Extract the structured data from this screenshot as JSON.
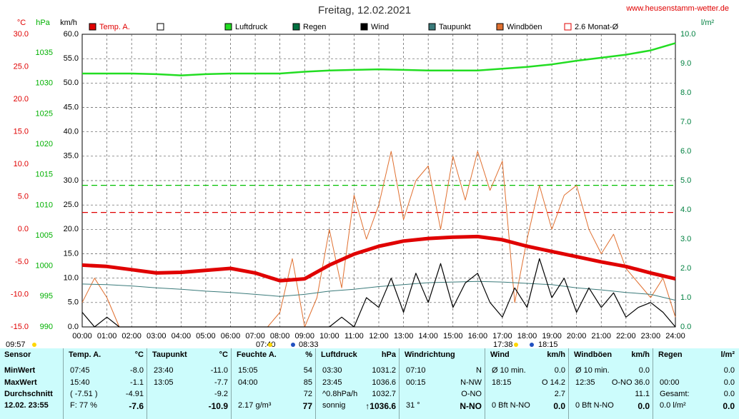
{
  "chart_data": {
    "type": "line",
    "title": "Freitag, 12.02.2021",
    "site": "www.heusenstamm-wetter.de",
    "xlim": [
      0,
      24
    ],
    "xticks": [
      {
        "value": 0,
        "label": "00:00"
      },
      {
        "value": 1,
        "label": "01:00"
      },
      {
        "value": 2,
        "label": "02:00"
      },
      {
        "value": 3,
        "label": "03:00"
      },
      {
        "value": 4,
        "label": "04:00"
      },
      {
        "value": 5,
        "label": "05:00"
      },
      {
        "value": 6,
        "label": "06:00"
      },
      {
        "value": 7,
        "label": "07:00"
      },
      {
        "value": 8,
        "label": "08:00"
      },
      {
        "value": 9,
        "label": "09:00"
      },
      {
        "value": 10,
        "label": "10:00"
      },
      {
        "value": 11,
        "label": "11:00"
      },
      {
        "value": 12,
        "label": "12:00"
      },
      {
        "value": 13,
        "label": "13:00"
      },
      {
        "value": 14,
        "label": "14:00"
      },
      {
        "value": 15,
        "label": "15:00"
      },
      {
        "value": 16,
        "label": "16:00"
      },
      {
        "value": 17,
        "label": "17:00"
      },
      {
        "value": 18,
        "label": "18:00"
      },
      {
        "value": 19,
        "label": "19:00"
      },
      {
        "value": 20,
        "label": "20:00"
      },
      {
        "value": 21,
        "label": "21:00"
      },
      {
        "value": 22,
        "label": "22:00"
      },
      {
        "value": 23,
        "label": "23:00"
      },
      {
        "value": 24,
        "label": "24:00"
      }
    ],
    "grid": true,
    "axes": {
      "temp": {
        "unit": "°C",
        "color": "#e00000",
        "lim": [
          -15,
          30
        ],
        "ticks": [
          {
            "value": 30,
            "label": "30.0"
          },
          {
            "value": 25,
            "label": "25.0"
          },
          {
            "value": 20,
            "label": "20.0"
          },
          {
            "value": 15,
            "label": "15.0"
          },
          {
            "value": 10,
            "label": "10.0"
          },
          {
            "value": 5,
            "label": "5.0"
          },
          {
            "value": 0,
            "label": "0.0"
          },
          {
            "value": -5,
            "label": "-5.0"
          },
          {
            "value": -10,
            "label": "-10.0"
          },
          {
            "value": -15,
            "label": "-15.0"
          }
        ]
      },
      "hpa": {
        "unit": "hPa",
        "color": "#00b000",
        "lim": [
          990,
          1038.05
        ],
        "ticks": [
          1035,
          1030,
          1025,
          1020,
          1015,
          1010,
          1005,
          1000,
          995,
          990
        ]
      },
      "kmh": {
        "unit": "km/h",
        "color": "#000000",
        "lim": [
          0,
          60
        ],
        "ticks": [
          {
            "value": 60,
            "label": "60.0"
          },
          {
            "value": 55,
            "label": "55.0"
          },
          {
            "value": 50,
            "label": "50.0"
          },
          {
            "value": 45,
            "label": "45.0"
          },
          {
            "value": 40,
            "label": "40.0"
          },
          {
            "value": 35,
            "label": "35.0"
          },
          {
            "value": 30,
            "label": "30.0"
          },
          {
            "value": 25,
            "label": "25.0"
          },
          {
            "value": 20,
            "label": "20.0"
          },
          {
            "value": 15,
            "label": "15.0"
          },
          {
            "value": 10,
            "label": "10.0"
          },
          {
            "value": 5,
            "label": "5.0"
          },
          {
            "value": 0,
            "label": "0.0"
          }
        ]
      },
      "rain": {
        "unit": "l/m²",
        "color": "#008040",
        "lim": [
          0,
          10
        ],
        "ticks": [
          {
            "value": 10,
            "label": "10.0"
          },
          {
            "value": 9,
            "label": "9.0"
          },
          {
            "value": 8,
            "label": "8.0"
          },
          {
            "value": 7,
            "label": "7.0"
          },
          {
            "value": 6,
            "label": "6.0"
          },
          {
            "value": 5,
            "label": "5.0"
          },
          {
            "value": 4,
            "label": "4.0"
          },
          {
            "value": 3,
            "label": "3.0"
          },
          {
            "value": 2,
            "label": "2.0"
          },
          {
            "value": 1,
            "label": "1.0"
          },
          {
            "value": 0,
            "label": "0.0"
          }
        ]
      }
    },
    "series": [
      {
        "name": "Temp. A.",
        "color": "#e00000",
        "axis": "temp",
        "width": 5,
        "x": [
          0,
          1,
          2,
          3,
          4,
          5,
          6,
          7,
          8,
          9,
          10,
          11,
          12,
          13,
          14,
          15,
          16,
          17,
          18,
          19,
          20,
          21,
          22,
          23,
          24
        ],
        "values": [
          -5.5,
          -5.7,
          -6.2,
          -6.7,
          -6.6,
          -6.3,
          -6.0,
          -6.7,
          -7.9,
          -7.6,
          -5.5,
          -3.8,
          -2.6,
          -1.8,
          -1.4,
          -1.2,
          -1.1,
          -1.6,
          -2.6,
          -3.4,
          -4.2,
          -5.0,
          -5.7,
          -6.7,
          -7.6
        ]
      },
      {
        "name": "Luftdruck",
        "color": "#22dd22",
        "axis": "hpa",
        "width": 2.5,
        "x": [
          0,
          1,
          2,
          3,
          4,
          5,
          6,
          7,
          8,
          9,
          10,
          11,
          12,
          13,
          14,
          15,
          16,
          17,
          18,
          19,
          20,
          21,
          22,
          23,
          24
        ],
        "values": [
          1031.6,
          1031.6,
          1031.6,
          1031.5,
          1031.3,
          1031.5,
          1031.6,
          1031.6,
          1031.6,
          1031.9,
          1032.1,
          1032.2,
          1032.3,
          1032.2,
          1032.1,
          1032.1,
          1032.1,
          1032.4,
          1032.7,
          1033.1,
          1033.7,
          1034.2,
          1034.7,
          1035.4,
          1036.6
        ]
      },
      {
        "name": "Wind",
        "color": "#000000",
        "axis": "kmh",
        "width": 1.2,
        "x": [
          0,
          0.5,
          1,
          1.5,
          2,
          2.5,
          3,
          3.5,
          4,
          4.5,
          5,
          5.5,
          6,
          6.5,
          7,
          7.5,
          8,
          8.5,
          9,
          9.5,
          10,
          10.5,
          11,
          11.5,
          12,
          12.5,
          13,
          13.5,
          14,
          14.5,
          15,
          15.5,
          16,
          16.5,
          17,
          17.5,
          18,
          18.5,
          19,
          19.5,
          20,
          20.5,
          21,
          21.5,
          22,
          22.5,
          23,
          23.5,
          24
        ],
        "values": [
          3,
          0,
          2,
          0,
          0,
          0,
          0,
          0,
          0,
          0,
          0,
          0,
          0,
          0,
          0,
          0,
          0,
          0,
          0,
          0,
          0,
          2,
          0,
          6,
          4,
          10,
          3,
          11,
          5,
          13,
          4,
          9,
          11,
          5,
          2,
          8,
          4,
          14,
          6,
          10,
          3,
          8,
          4,
          7,
          2,
          4,
          5,
          3,
          0
        ]
      },
      {
        "name": "Taupunkt",
        "color": "#3a7a7a",
        "axis": "temp",
        "width": 1,
        "x": [
          0,
          1,
          2,
          3,
          4,
          5,
          6,
          7,
          8,
          9,
          10,
          11,
          12,
          13,
          14,
          15,
          16,
          17,
          18,
          19,
          20,
          21,
          22,
          23,
          24
        ],
        "values": [
          -8.4,
          -8.5,
          -8.7,
          -9.0,
          -9.2,
          -9.5,
          -9.7,
          -10.0,
          -10.3,
          -10.0,
          -9.5,
          -9.2,
          -8.8,
          -8.5,
          -8.2,
          -8.1,
          -8.0,
          -8.1,
          -8.3,
          -8.5,
          -9.0,
          -9.3,
          -9.7,
          -10.0,
          -10.9
        ]
      },
      {
        "name": "Windböen",
        "color": "#e07030",
        "axis": "kmh",
        "width": 1,
        "x": [
          0,
          0.5,
          1,
          1.5,
          2,
          2.5,
          3,
          3.5,
          4,
          4.5,
          5,
          5.5,
          6,
          6.5,
          7,
          7.5,
          8,
          8.5,
          9,
          9.5,
          10,
          10.5,
          11,
          11.5,
          12,
          12.5,
          13,
          13.5,
          14,
          14.5,
          15,
          15.5,
          16,
          16.5,
          17,
          17.5,
          18,
          18.5,
          19,
          19.5,
          20,
          20.5,
          21,
          21.5,
          22,
          22.5,
          23,
          23.5,
          24
        ],
        "values": [
          5,
          10,
          6,
          0,
          0,
          0,
          0,
          0,
          0,
          0,
          0,
          0,
          0,
          0,
          0,
          0,
          3,
          14,
          0,
          6,
          20,
          8,
          27,
          18,
          25,
          36,
          22,
          30,
          33,
          20,
          35,
          26,
          36,
          28,
          34,
          5,
          18,
          29,
          20,
          27,
          29,
          20,
          15,
          19,
          12,
          9,
          6,
          10,
          2
        ]
      }
    ],
    "legend_extra": [
      {
        "color": "#ffffff"
      },
      {
        "name": "Regen",
        "color": "#007040"
      },
      {
        "name": "2.6 Monat-Ø",
        "color": "#e00000"
      }
    ],
    "reference_lines": [
      {
        "axis": "temp",
        "value": 2.6,
        "color": "#e00000"
      },
      {
        "axis": "hpa",
        "value": 1013.25,
        "color": "#00c000"
      }
    ],
    "sun_labels": [
      "09:57",
      "07:40",
      "08:33",
      "17:38",
      "18:15"
    ]
  },
  "table": {
    "header": [
      {
        "t": "Sensor"
      },
      {
        "t": "Temp. A.",
        "v": "°C"
      },
      {
        "t": "Taupunkt",
        "v": "°C"
      },
      {
        "t": "Feuchte A.",
        "v": "%"
      },
      {
        "t": "Luftdruck",
        "v": "hPa"
      },
      {
        "t": "Windrichtung"
      },
      {
        "t": "Wind",
        "v": "km/h"
      },
      {
        "t": "Windböen",
        "v": "km/h"
      },
      {
        "t": "Regen",
        "v": "l/m²"
      }
    ],
    "rows": [
      {
        "label": "MinWert",
        "cells": [
          {
            "t": "07:45",
            "v": "-8.0"
          },
          {
            "t": "23:40",
            "v": "-11.0"
          },
          {
            "t": "15:05",
            "v": "54"
          },
          {
            "t": "03:30",
            "v": "1031.2"
          },
          {
            "t": "07:10",
            "v": "N"
          },
          {
            "t": "Ø 10 min.",
            "v": "0.0"
          },
          {
            "t": "Ø 10 min.",
            "v": "0.0"
          },
          {
            "v": "0.0"
          }
        ]
      },
      {
        "label": "MaxWert",
        "cells": [
          {
            "t": "15:40",
            "v": "-1.1"
          },
          {
            "t": "13:05",
            "v": "-7.7"
          },
          {
            "t": "04:00",
            "v": "85"
          },
          {
            "t": "23:45",
            "v": "1036.6"
          },
          {
            "t": "00:15",
            "v": "N-NW"
          },
          {
            "t": "18:15",
            "v": "O 14.2"
          },
          {
            "t": "12:35",
            "v": "O-NO 36.0"
          },
          {
            "t": "00:00",
            "v": "0.0"
          }
        ]
      },
      {
        "label": "Durchschnitt",
        "cells": [
          {
            "t": "( -7.51 )",
            "v": "-4.91"
          },
          {
            "v": "-9.2"
          },
          {
            "v": "72"
          },
          {
            "t": "^0.8hPa/h",
            "v": "1032.7"
          },
          {
            "v": "O-NO"
          },
          {
            "v": "2.7"
          },
          {
            "v": "11.1"
          },
          {
            "t": "Gesamt:",
            "v": "0.0"
          }
        ]
      },
      {
        "label": "12.02. 23:55",
        "cells": [
          {
            "t": "F: 77 %",
            "v": "-7.6"
          },
          {
            "v": "-10.9"
          },
          {
            "t": "2.17 g/m³",
            "v": "77"
          },
          {
            "t": "sonnig",
            "v": "↑1036.6"
          },
          {
            "t": "31 °",
            "v": "N-NO"
          },
          {
            "t": "0 Bft N-NO",
            "v": "0.0"
          },
          {
            "t": "0 Bft N-NO",
            "v": "0.0"
          },
          {
            "t": "0.0 l/m²",
            "v": "0.0"
          }
        ]
      }
    ]
  }
}
